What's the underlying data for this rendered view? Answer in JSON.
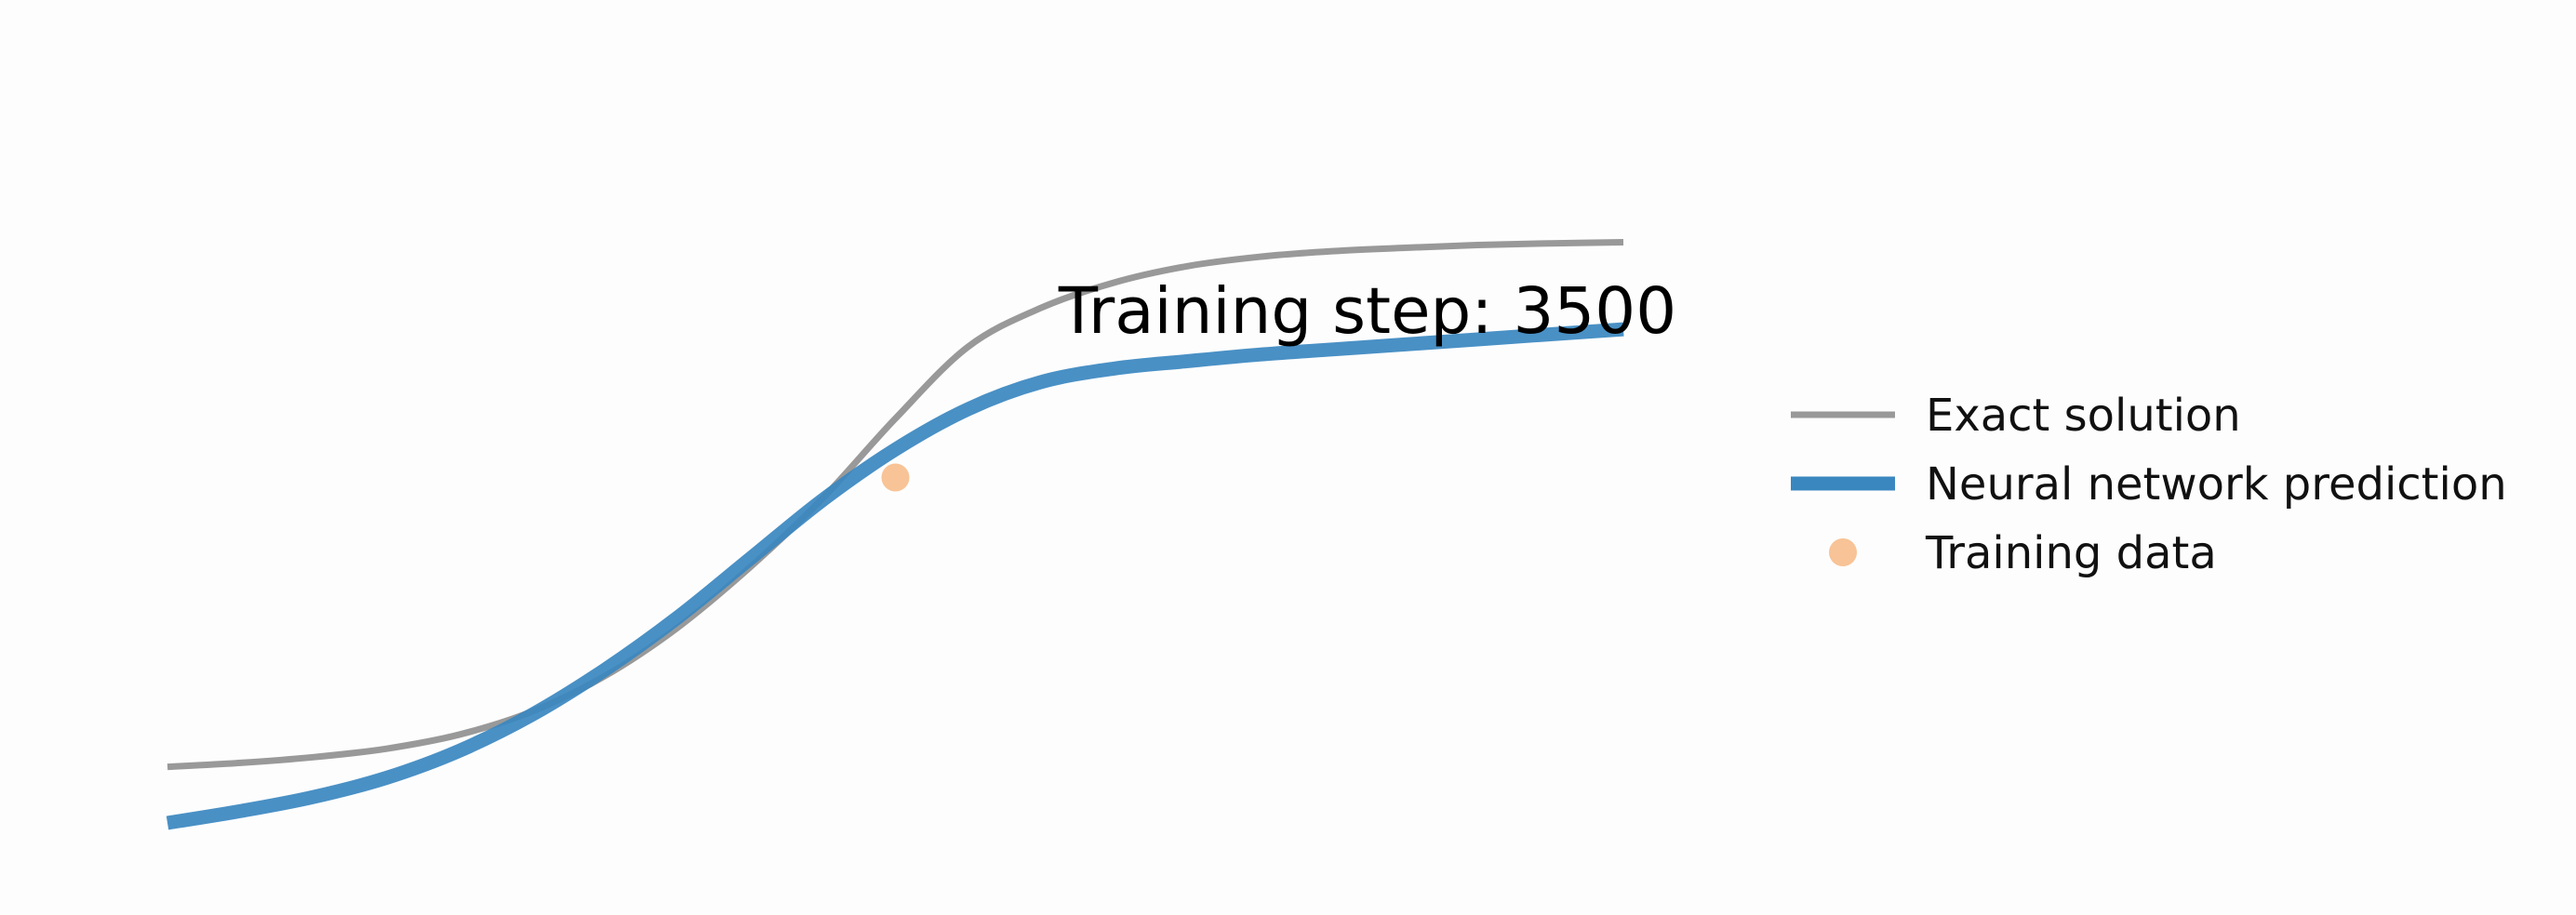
{
  "chart_data": {
    "type": "line",
    "title": "",
    "xlabel": "",
    "ylabel": "",
    "axes_visible": false,
    "grid": false,
    "xlim": [
      0,
      1
    ],
    "ylim": [
      -0.05,
      1.05
    ],
    "annotation": "Training step: 3500",
    "legend": {
      "placement": "right"
    },
    "series": [
      {
        "name": "Exact solution",
        "kind": "line",
        "color": "#999999",
        "x": [
          0.0,
          0.05,
          0.1,
          0.15,
          0.2,
          0.25,
          0.3,
          0.35,
          0.4,
          0.45,
          0.5,
          0.55,
          0.6,
          0.65,
          0.7,
          0.75,
          0.8,
          0.85,
          0.9,
          0.95,
          1.0
        ],
        "y": [
          0.1,
          0.107,
          0.117,
          0.132,
          0.157,
          0.198,
          0.261,
          0.347,
          0.455,
          0.578,
          0.72,
          0.848,
          0.917,
          0.962,
          0.991,
          1.008,
          1.018,
          1.024,
          1.029,
          1.032,
          1.034
        ]
      },
      {
        "name": "Neural network prediction",
        "kind": "line",
        "color": "#3a87c0",
        "x": [
          0.0,
          0.05,
          0.1,
          0.15,
          0.2,
          0.25,
          0.3,
          0.35,
          0.4,
          0.45,
          0.5,
          0.55,
          0.6,
          0.65,
          0.7,
          0.75,
          0.8,
          0.85,
          0.9,
          0.95,
          1.0
        ],
        "y": [
          0.0,
          0.021,
          0.046,
          0.08,
          0.128,
          0.192,
          0.272,
          0.365,
          0.47,
          0.575,
          0.665,
          0.737,
          0.785,
          0.809,
          0.822,
          0.834,
          0.843,
          0.852,
          0.861,
          0.87,
          0.879
        ]
      },
      {
        "name": "Training data",
        "kind": "scatter",
        "color": "#f5a96a",
        "x": [
          0.5
        ],
        "y": [
          0.615
        ]
      }
    ]
  }
}
